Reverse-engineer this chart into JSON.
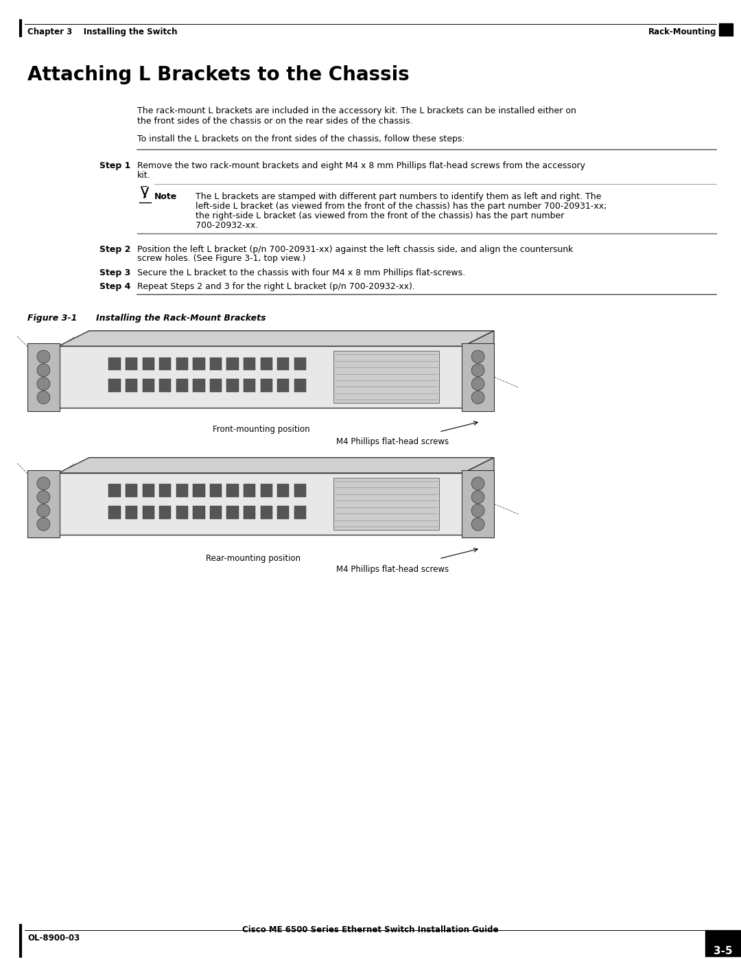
{
  "bg_color": "#ffffff",
  "header_left": "Chapter 3    Installing the Switch",
  "header_right": "Rack-Mounting",
  "footer_left": "OL-8900-03",
  "footer_center": "Cisco ME 6500 Series Ethernet Switch Installation Guide",
  "footer_page": "3-5",
  "section_title": "Attaching L Brackets to the Chassis",
  "para1": "The rack-mount L brackets are included in the accessory kit. The L brackets can be installed either on\nthe front sides of the chassis or on the rear sides of the chassis.",
  "para2": "To install the L brackets on the front sides of the chassis, follow these steps:",
  "step1_label": "Step 1",
  "step1_text": "Remove the two rack-mount brackets and eight M4 x 8 mm Phillips flat-head screws from the accessory\nkit.",
  "note_label": "Note",
  "note_text": "The L brackets are stamped with different part numbers to identify them as left and right. The\nleft-side L bracket (as viewed from the front of the chassis) has the part number 700-20931-xx;\nthe right-side L bracket (as viewed from the front of the chassis) has the part number\n700-20932-xx.",
  "step2_label": "Step 2",
  "step2_text": "Position the left L bracket (p/n 700-20931-xx) against the left chassis side, and align the countersunk\nscrew holes. (See Figure 3-1, top view.)",
  "step3_label": "Step 3",
  "step3_text": "Secure the L bracket to the chassis with four M4 x 8 mm Phillips flat-screws.",
  "step4_label": "Step 4",
  "step4_text": "Repeat Steps 2 and 3 for the right L bracket (p/n 700-20932-xx).",
  "fig_label": "Figure 3-1",
  "fig_title": "Installing the Rack-Mount Brackets",
  "label_front_pos": "Front-mounting position",
  "label_rear_pos": "Rear-mounting position",
  "label_screws1": "M4 Phillips flat-head screws",
  "label_screws2": "M4 Phillips flat-head screws"
}
